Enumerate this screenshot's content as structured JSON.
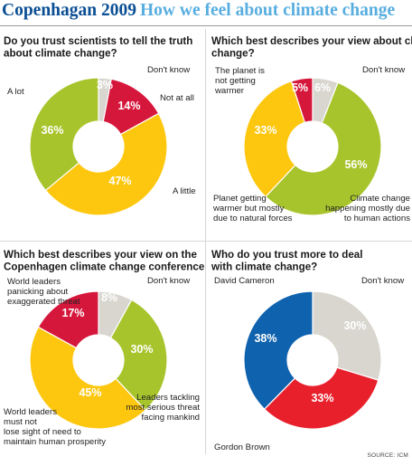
{
  "header": {
    "title_main": "Copenhagan 2009",
    "title_sub": "How we feel about climate change"
  },
  "source": "SOURCE: ICM",
  "colors": {
    "title_main": "#0b4f94",
    "title_sub": "#58aee0"
  },
  "chart_data": [
    {
      "type": "pie",
      "title": "Do you trust scientists to tell the truth about climate change?",
      "categories": [
        "Don't know",
        "Not at all",
        "A little",
        "A lot"
      ],
      "values": [
        3,
        14,
        47,
        36
      ],
      "value_labels": [
        "3%",
        "14%",
        "47%",
        "36%"
      ],
      "colors": [
        "#d8d6cf",
        "#d6173c",
        "#fec70f",
        "#a8c42c"
      ]
    },
    {
      "type": "pie",
      "title": "Which best describes your view about climate change?",
      "categories": [
        "Don't know",
        "Climate change happening mostly due to human actions",
        "Planet getting warmer but mostly due to natural forces",
        "The planet is not getting warmer"
      ],
      "values": [
        6,
        56,
        33,
        5
      ],
      "value_labels": [
        "6%",
        "56%",
        "33%",
        "5%"
      ],
      "colors": [
        "#d8d6cf",
        "#a8c42c",
        "#fec70f",
        "#d6173c"
      ]
    },
    {
      "type": "pie",
      "title": "Which best describes your view on the Copenhagen climate change conference",
      "categories": [
        "Don't know",
        "Leaders tackling most serious threat facing mankind",
        "World leaders must not lose sight of need to maintain human prosperity",
        "World leaders panicking about exaggerated threat"
      ],
      "values": [
        8,
        30,
        45,
        17
      ],
      "value_labels": [
        "8%",
        "30%",
        "45%",
        "17%"
      ],
      "colors": [
        "#d8d6cf",
        "#a8c42c",
        "#fec70f",
        "#d6173c"
      ]
    },
    {
      "type": "pie",
      "title": "Who do you trust more to deal with climate change?",
      "categories": [
        "Don't know",
        "Gordon Brown",
        "David Cameron"
      ],
      "values": [
        30,
        33,
        38
      ],
      "value_labels": [
        "30%",
        "33%",
        "38%"
      ],
      "colors": [
        "#d8d6cf",
        "#e8202c",
        "#0f62ae"
      ]
    }
  ]
}
